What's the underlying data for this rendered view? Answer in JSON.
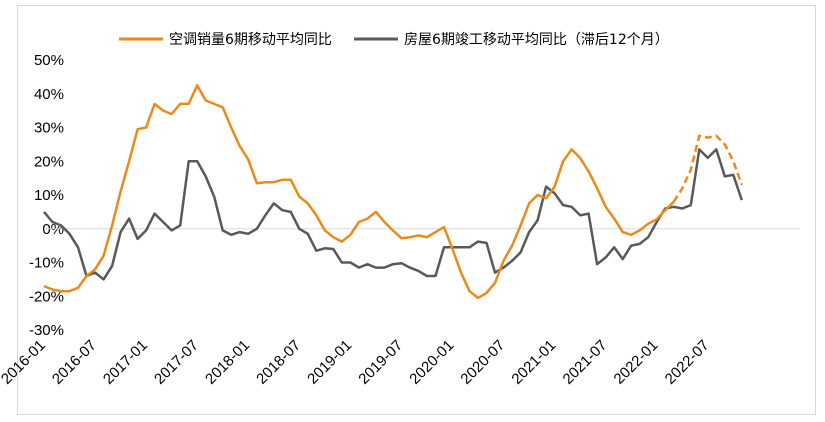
{
  "chart_data": {
    "type": "line",
    "title": "",
    "xlabel": "",
    "ylabel": "",
    "ylim": [
      -0.3,
      0.5
    ],
    "y_ticks": [
      0.5,
      0.4,
      0.3,
      0.2,
      0.1,
      0.0,
      -0.1,
      -0.2,
      -0.3
    ],
    "y_tick_labels": [
      "50%",
      "40%",
      "30%",
      "20%",
      "10%",
      "0%",
      "-10%",
      "-20%",
      "-30%"
    ],
    "x_start": "2016-01",
    "x_tick_labels": [
      "2016-01",
      "2016-07",
      "2017-01",
      "2017-07",
      "2018-01",
      "2018-07",
      "2019-01",
      "2019-07",
      "2020-01",
      "2020-07",
      "2021-01",
      "2021-07",
      "2022-01",
      "2022-07"
    ],
    "grid": false,
    "legend_position": "top",
    "series": [
      {
        "name": "空调销量6期移动平均同比",
        "color": "#ea8a1b",
        "dashed_from": "2022-03",
        "values": [
          -0.17,
          -0.18,
          -0.185,
          -0.185,
          -0.175,
          -0.14,
          -0.12,
          -0.08,
          0.01,
          0.11,
          0.2,
          0.295,
          0.3,
          0.37,
          0.35,
          0.34,
          0.37,
          0.37,
          0.425,
          0.38,
          0.37,
          0.36,
          0.3,
          0.245,
          0.205,
          0.135,
          0.138,
          0.138,
          0.145,
          0.145,
          0.095,
          0.075,
          0.04,
          -0.005,
          -0.025,
          -0.038,
          -0.018,
          0.02,
          0.03,
          0.05,
          0.02,
          -0.005,
          -0.028,
          -0.025,
          -0.02,
          -0.025,
          -0.01,
          0.005,
          -0.06,
          -0.13,
          -0.185,
          -0.205,
          -0.19,
          -0.16,
          -0.095,
          -0.05,
          0.01,
          0.075,
          0.1,
          0.09,
          0.125,
          0.2,
          0.235,
          0.21,
          0.17,
          0.12,
          0.065,
          0.03,
          -0.01,
          -0.018,
          -0.005,
          0.015,
          0.028,
          0.055,
          0.08,
          0.12,
          0.175,
          0.275,
          0.27,
          0.275,
          0.25,
          0.2,
          0.13
        ]
      },
      {
        "name": "房屋6期竣工移动平均同比（滞后12个月）",
        "color": "#595959",
        "values": [
          0.05,
          0.02,
          0.01,
          -0.015,
          -0.055,
          -0.14,
          -0.13,
          -0.15,
          -0.11,
          -0.01,
          0.03,
          -0.03,
          -0.005,
          0.045,
          0.02,
          -0.005,
          0.01,
          0.2,
          0.2,
          0.155,
          0.095,
          -0.005,
          -0.018,
          -0.01,
          -0.015,
          0.0,
          0.04,
          0.075,
          0.055,
          0.05,
          0.0,
          -0.015,
          -0.065,
          -0.058,
          -0.06,
          -0.1,
          -0.1,
          -0.115,
          -0.105,
          -0.115,
          -0.115,
          -0.105,
          -0.102,
          -0.115,
          -0.125,
          -0.14,
          -0.14,
          -0.055,
          -0.055,
          -0.055,
          -0.055,
          -0.038,
          -0.042,
          -0.13,
          -0.115,
          -0.095,
          -0.07,
          -0.01,
          0.025,
          0.125,
          0.105,
          0.07,
          0.065,
          0.04,
          0.045,
          -0.105,
          -0.085,
          -0.055,
          -0.09,
          -0.05,
          -0.045,
          -0.025,
          0.02,
          0.06,
          0.065,
          0.06,
          0.07,
          0.235,
          0.21,
          0.235,
          0.155,
          0.16,
          0.085
        ]
      }
    ]
  }
}
